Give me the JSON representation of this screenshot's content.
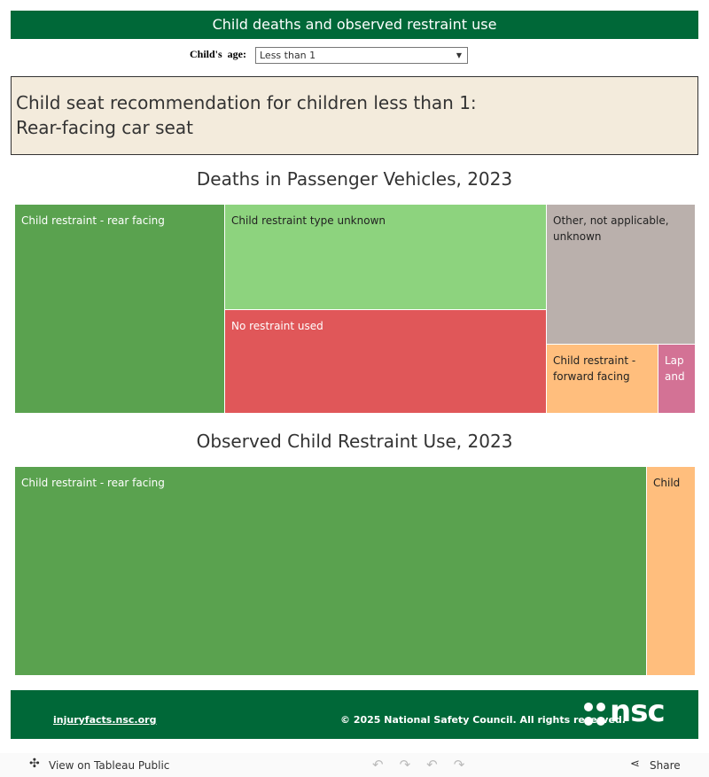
{
  "header": {
    "title": "Child deaths and observed restraint use"
  },
  "filter": {
    "label": "Child's  age:",
    "value": "Less than 1"
  },
  "recommendation": {
    "lines": [
      "Child seat recommendation for children less than 1:",
      "Rear-facing car seat"
    ]
  },
  "treemaps": [
    {
      "title": "Deaths in Passenger Vehicles, 2023",
      "cells": [
        {
          "lines": [
            "Child restraint - rear facing"
          ]
        },
        {
          "lines": [
            "Child restraint type unknown"
          ]
        },
        {
          "lines": [
            "No restraint used"
          ]
        },
        {
          "lines": [
            "Other, not applicable,",
            "unknown"
          ]
        },
        {
          "lines": [
            "Child restraint -",
            "forward facing"
          ]
        },
        {
          "lines": [
            "Lap",
            "and"
          ]
        }
      ]
    },
    {
      "title": "Observed Child Restraint Use, 2023",
      "cells": [
        {
          "lines": [
            "Child restraint - rear facing"
          ]
        },
        {
          "lines": [
            "Child"
          ]
        }
      ]
    }
  ],
  "footer": {
    "link": "injuryfacts.nsc.org",
    "copyright": "© 2025 National Safety Council. All rights reserved.",
    "logo": "nsc"
  },
  "toolbar": {
    "view": "View on Tableau Public",
    "share": "Share"
  }
}
